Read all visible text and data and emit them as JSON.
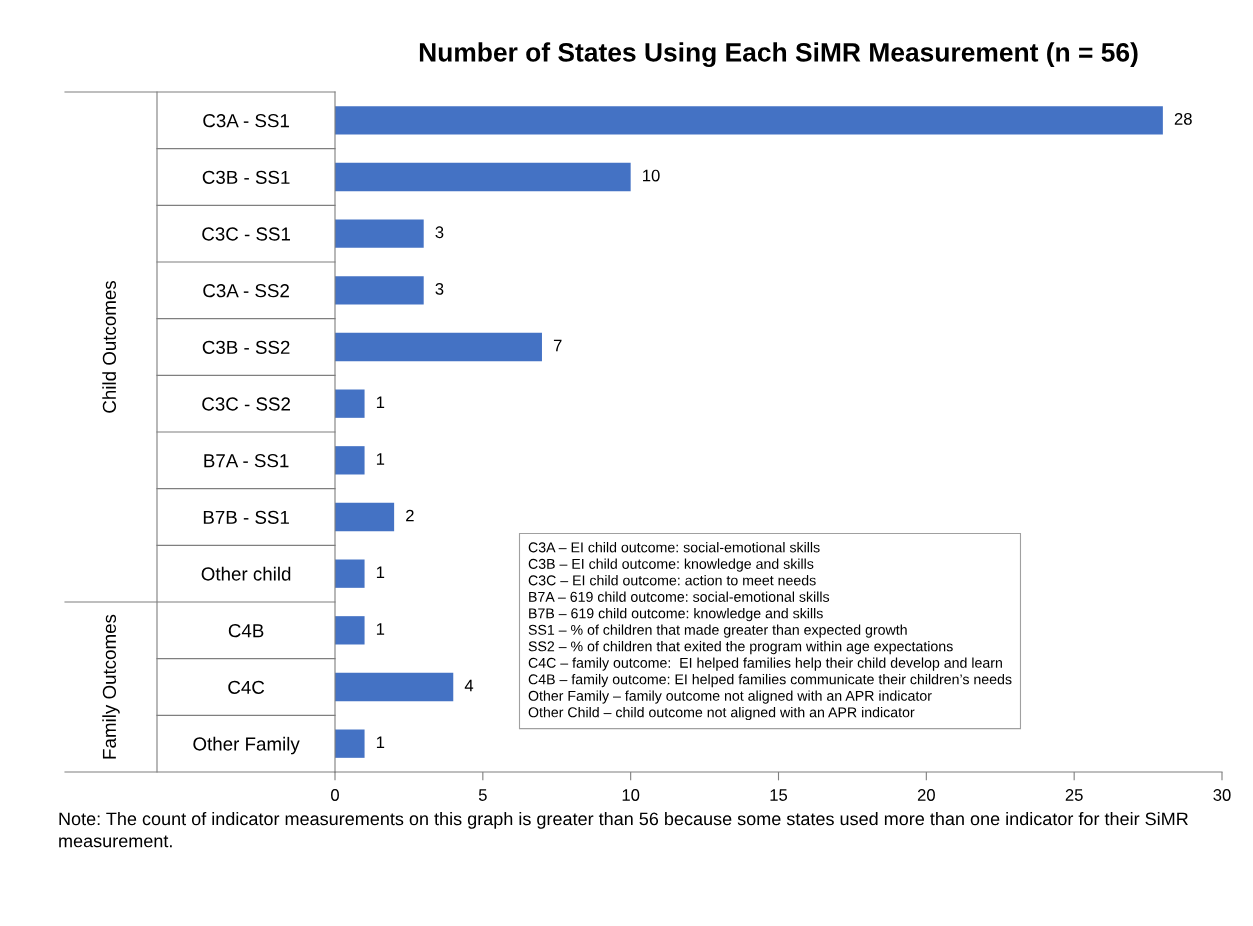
{
  "chart_data": {
    "type": "bar",
    "orientation": "horizontal",
    "title": "Number of States Using Each SiMR Measurement (n = 56)",
    "categories": [
      "C3A - SS1",
      "C3B - SS1",
      "C3C - SS1",
      "C3A - SS2",
      "C3B - SS2",
      "C3C - SS2",
      "B7A - SS1",
      "B7B - SS1",
      "Other child",
      "C4B",
      "C4C",
      "Other Family"
    ],
    "values": [
      28,
      10,
      3,
      3,
      7,
      1,
      1,
      2,
      1,
      1,
      4,
      1
    ],
    "color": "#4472c4",
    "data_labels": true,
    "xlim": [
      0,
      30
    ],
    "xticks": [
      0,
      5,
      10,
      15,
      20,
      25,
      30
    ],
    "grid": false,
    "legend": false,
    "annotations": [
      "Child Outcomes",
      "Family Outcomes",
      "C3A – EI child outcome: social-emotional skills\nC3B – EI child outcome: knowledge and skills\nC3C – EI child outcome: action to meet needs\nB7A – 619 child outcome: social-emotional skills\nB7B – 619 child outcome: knowledge and skills\nSS1 – % of children that made greater than expected growth\nSS2 – % of children that exited the program within age expectations\nC4C – family outcome:  EI helped families help their child develop and learn\nC4B – family outcome: EI helped families communicate their children’s needs\nOther Family – family outcome not aligned with an APR indicator\nOther Child – child outcome not aligned with an APR indicator",
      "Note: The count of indicator measurements on this graph is greater than 56 because some states used more than one indicator for their SiMR measurement."
    ]
  }
}
